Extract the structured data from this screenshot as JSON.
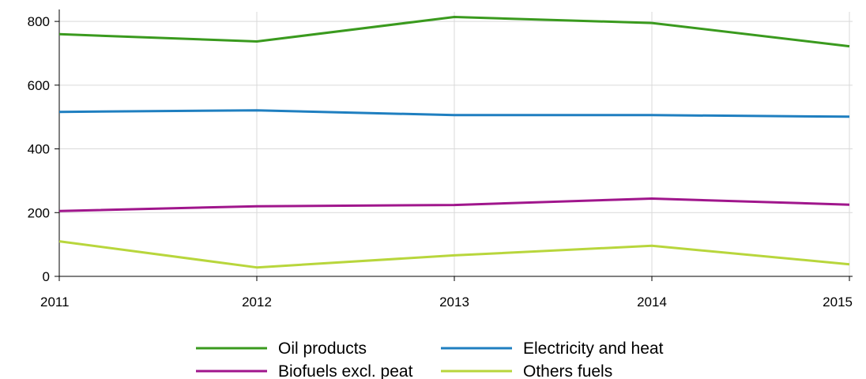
{
  "chart_data": {
    "type": "line",
    "title": "",
    "xlabel": "",
    "ylabel": "",
    "x": [
      "2011",
      "2012",
      "2013",
      "2014",
      "2015"
    ],
    "ylim": [
      0,
      830
    ],
    "yticks": [
      "0",
      "200",
      "400",
      "600",
      "800"
    ],
    "grid": true,
    "legend_position": "bottom",
    "series": [
      {
        "name": "Oil products",
        "color": "#3a9a1e",
        "values": [
          760,
          737,
          814,
          795,
          722
        ]
      },
      {
        "name": "Electricity and heat",
        "color": "#1f7fc0",
        "values": [
          516,
          521,
          506,
          506,
          501
        ]
      },
      {
        "name": "Biofuels excl. peat",
        "color": "#a0168c",
        "values": [
          205,
          220,
          224,
          244,
          225
        ]
      },
      {
        "name": "Others fuels",
        "color": "#b8d63c",
        "values": [
          110,
          28,
          66,
          96,
          38
        ]
      }
    ]
  }
}
